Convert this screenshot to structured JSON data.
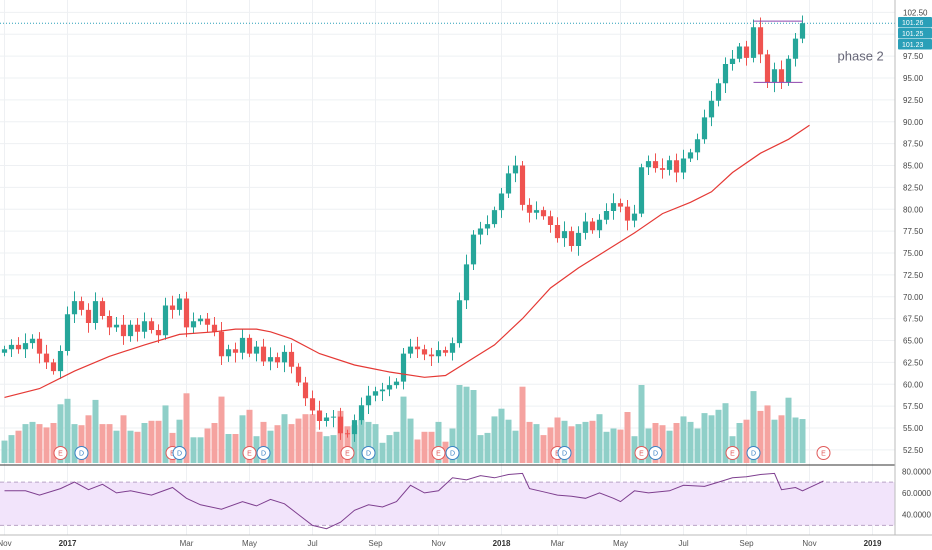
{
  "chart_data": {
    "type": "candlestick",
    "price_axis": {
      "range": [
        51.0,
        103.0
      ],
      "ticks": [
        "102.50",
        "100.00",
        "97.50",
        "95.00",
        "92.50",
        "90.00",
        "87.50",
        "85.00",
        "82.50",
        "80.00",
        "77.50",
        "75.00",
        "72.50",
        "70.00",
        "67.50",
        "65.00",
        "62.50",
        "60.00",
        "57.50",
        "55.00",
        "52.50"
      ]
    },
    "price_badges": [
      {
        "label": "101.26",
        "value": 101.26,
        "color": "#2a9fb8"
      },
      {
        "label": "101.25",
        "value": 101.25,
        "color": "#2a9fb8"
      },
      {
        "label": "101.23",
        "value": 101.23,
        "color": "#2a9fb8"
      }
    ],
    "current_price": 101.26,
    "x_axis": {
      "ticks": [
        {
          "label": "Nov",
          "week": 0,
          "bold": false
        },
        {
          "label": "2017",
          "week": 9,
          "bold": true
        },
        {
          "label": "Mar",
          "week": 26,
          "bold": false
        },
        {
          "label": "May",
          "week": 35,
          "bold": false
        },
        {
          "label": "Jul",
          "week": 44,
          "bold": false
        },
        {
          "label": "Sep",
          "week": 53,
          "bold": false
        },
        {
          "label": "Nov",
          "week": 62,
          "bold": false
        },
        {
          "label": "2018",
          "week": 71,
          "bold": true
        },
        {
          "label": "Mar",
          "week": 79,
          "bold": false
        },
        {
          "label": "May",
          "week": 88,
          "bold": false
        },
        {
          "label": "Jul",
          "week": 97,
          "bold": false
        },
        {
          "label": "Sep",
          "week": 106,
          "bold": false
        },
        {
          "label": "Nov",
          "week": 115,
          "bold": false
        },
        {
          "label": "2019",
          "week": 124,
          "bold": true
        }
      ]
    },
    "closes": [
      64.0,
      64.5,
      64.0,
      64.7,
      65.2,
      63.5,
      62.5,
      61.5,
      63.8,
      68.0,
      69.5,
      68.5,
      67.0,
      69.5,
      67.8,
      66.5,
      66.8,
      65.5,
      66.8,
      66.0,
      67.2,
      66.2,
      65.6,
      69.0,
      68.5,
      69.8,
      66.5,
      67.2,
      67.5,
      66.8,
      66.0,
      63.2,
      64.0,
      63.6,
      65.3,
      63.5,
      64.3,
      62.6,
      63.1,
      62.5,
      63.7,
      62.0,
      60.2,
      58.4,
      57.0,
      55.8,
      56.2,
      56.3,
      54.4,
      54.3,
      55.9,
      57.6,
      58.7,
      59.2,
      59.4,
      59.9,
      60.3,
      63.5,
      64.3,
      64.0,
      63.4,
      63.2,
      63.9,
      63.6,
      64.7,
      69.6,
      73.7,
      77.1,
      77.8,
      78.3,
      79.9,
      81.8,
      84.1,
      85.0,
      80.5,
      79.6,
      79.9,
      79.2,
      78.2,
      76.7,
      77.5,
      75.8,
      77.3,
      78.6,
      77.6,
      78.8,
      79.8,
      80.7,
      80.3,
      78.7,
      79.5,
      84.8,
      85.5,
      84.7,
      84.5,
      85.6,
      84.2,
      85.8,
      86.5,
      88.0,
      90.5,
      92.4,
      94.4,
      96.6,
      97.2,
      98.6,
      97.3,
      100.8,
      97.7,
      94.5,
      96.0,
      94.5,
      97.2,
      99.5,
      101.26
    ],
    "ma": [
      {
        "week": 0,
        "value": 58.5
      },
      {
        "week": 5,
        "value": 59.5
      },
      {
        "week": 10,
        "value": 61.5
      },
      {
        "week": 15,
        "value": 63.2
      },
      {
        "week": 20,
        "value": 64.5
      },
      {
        "week": 25,
        "value": 65.7
      },
      {
        "week": 30,
        "value": 66.0
      },
      {
        "week": 33,
        "value": 66.3
      },
      {
        "week": 36,
        "value": 66.3
      },
      {
        "week": 38,
        "value": 66.0
      },
      {
        "week": 41,
        "value": 65.2
      },
      {
        "week": 45,
        "value": 63.5
      },
      {
        "week": 50,
        "value": 62.2
      },
      {
        "week": 55,
        "value": 61.4
      },
      {
        "week": 60,
        "value": 60.8
      },
      {
        "week": 63,
        "value": 61.0
      },
      {
        "week": 66,
        "value": 62.5
      },
      {
        "week": 70,
        "value": 64.5
      },
      {
        "week": 74,
        "value": 67.5
      },
      {
        "week": 78,
        "value": 71.0
      },
      {
        "week": 82,
        "value": 73.3
      },
      {
        "week": 86,
        "value": 75.3
      },
      {
        "week": 90,
        "value": 77.3
      },
      {
        "week": 94,
        "value": 79.5
      },
      {
        "week": 98,
        "value": 80.8
      },
      {
        "week": 101,
        "value": 82.0
      },
      {
        "week": 104,
        "value": 84.2
      },
      {
        "week": 108,
        "value": 86.4
      },
      {
        "week": 112,
        "value": 88.0
      },
      {
        "week": 115,
        "value": 89.6
      }
    ],
    "annotation": {
      "label": "phase 2",
      "week": 119,
      "value": 97.0
    },
    "range_lines": [
      {
        "value": 101.5,
        "from_week": 107,
        "to_week": 114
      },
      {
        "value": 94.5,
        "from_week": 107,
        "to_week": 114
      }
    ],
    "events": [
      {
        "label": "E",
        "week": 8,
        "kind": "red"
      },
      {
        "label": "D",
        "week": 11,
        "kind": "blue"
      },
      {
        "label": "E",
        "week": 24,
        "kind": "red"
      },
      {
        "label": "D",
        "week": 25,
        "kind": "blue"
      },
      {
        "label": "E",
        "week": 35,
        "kind": "red"
      },
      {
        "label": "D",
        "week": 37,
        "kind": "blue"
      },
      {
        "label": "E",
        "week": 49,
        "kind": "red"
      },
      {
        "label": "D",
        "week": 52,
        "kind": "blue"
      },
      {
        "label": "E",
        "week": 62,
        "kind": "red"
      },
      {
        "label": "D",
        "week": 64,
        "kind": "blue"
      },
      {
        "label": "E",
        "week": 79,
        "kind": "red"
      },
      {
        "label": "D",
        "week": 80,
        "kind": "blue"
      },
      {
        "label": "E",
        "week": 91,
        "kind": "red"
      },
      {
        "label": "D",
        "week": 93,
        "kind": "blue"
      },
      {
        "label": "E",
        "week": 104,
        "kind": "red"
      },
      {
        "label": "D",
        "week": 107,
        "kind": "blue"
      },
      {
        "label": "E",
        "week": 117,
        "kind": "outline"
      }
    ],
    "rsi": {
      "ticks": [
        "80.0000",
        "60.0000",
        "40.0000"
      ],
      "range": [
        23,
        83
      ],
      "band": [
        30,
        70
      ],
      "points": [
        {
          "week": 0,
          "value": 62
        },
        {
          "week": 3,
          "value": 62
        },
        {
          "week": 5,
          "value": 58
        },
        {
          "week": 8,
          "value": 64
        },
        {
          "week": 10,
          "value": 70
        },
        {
          "week": 12,
          "value": 63
        },
        {
          "week": 14,
          "value": 68
        },
        {
          "week": 16,
          "value": 60
        },
        {
          "week": 18,
          "value": 62
        },
        {
          "week": 21,
          "value": 58
        },
        {
          "week": 24,
          "value": 65
        },
        {
          "week": 26,
          "value": 55
        },
        {
          "week": 28,
          "value": 49
        },
        {
          "week": 31,
          "value": 45
        },
        {
          "week": 34,
          "value": 52
        },
        {
          "week": 36,
          "value": 48
        },
        {
          "week": 38,
          "value": 54
        },
        {
          "week": 40,
          "value": 50
        },
        {
          "week": 42,
          "value": 40
        },
        {
          "week": 44,
          "value": 30
        },
        {
          "week": 46,
          "value": 27
        },
        {
          "week": 48,
          "value": 33
        },
        {
          "week": 50,
          "value": 44
        },
        {
          "week": 52,
          "value": 49
        },
        {
          "week": 54,
          "value": 47
        },
        {
          "week": 56,
          "value": 52
        },
        {
          "week": 58,
          "value": 67
        },
        {
          "week": 60,
          "value": 60
        },
        {
          "week": 62,
          "value": 62
        },
        {
          "week": 64,
          "value": 74
        },
        {
          "week": 66,
          "value": 72
        },
        {
          "week": 68,
          "value": 76
        },
        {
          "week": 70,
          "value": 74
        },
        {
          "week": 72,
          "value": 77
        },
        {
          "week": 74,
          "value": 78
        },
        {
          "week": 75,
          "value": 64
        },
        {
          "week": 77,
          "value": 61
        },
        {
          "week": 79,
          "value": 58
        },
        {
          "week": 81,
          "value": 57
        },
        {
          "week": 83,
          "value": 55
        },
        {
          "week": 85,
          "value": 60
        },
        {
          "week": 87,
          "value": 55
        },
        {
          "week": 88,
          "value": 52
        },
        {
          "week": 90,
          "value": 62
        },
        {
          "week": 92,
          "value": 60
        },
        {
          "week": 95,
          "value": 62
        },
        {
          "week": 97,
          "value": 67
        },
        {
          "week": 100,
          "value": 66
        },
        {
          "week": 102,
          "value": 70
        },
        {
          "week": 104,
          "value": 74
        },
        {
          "week": 106,
          "value": 75
        },
        {
          "week": 108,
          "value": 77
        },
        {
          "week": 110,
          "value": 78
        },
        {
          "week": 111,
          "value": 63
        },
        {
          "week": 113,
          "value": 65
        },
        {
          "week": 114,
          "value": 62
        },
        {
          "week": 116,
          "value": 68
        },
        {
          "week": 117,
          "value": 71
        }
      ]
    },
    "colors": {
      "up": "#26a69a",
      "down": "#ef5350",
      "up_volume": "#8fcfc8",
      "down_volume": "#f5a3a0",
      "ma_line": "#e53935",
      "rsi_line": "#7e3f8f",
      "rsi_band": "#f2e4fb",
      "range_line": "#8e44ad",
      "grid": "#eef0f3",
      "current_price_line": "#2a9fb8"
    }
  }
}
